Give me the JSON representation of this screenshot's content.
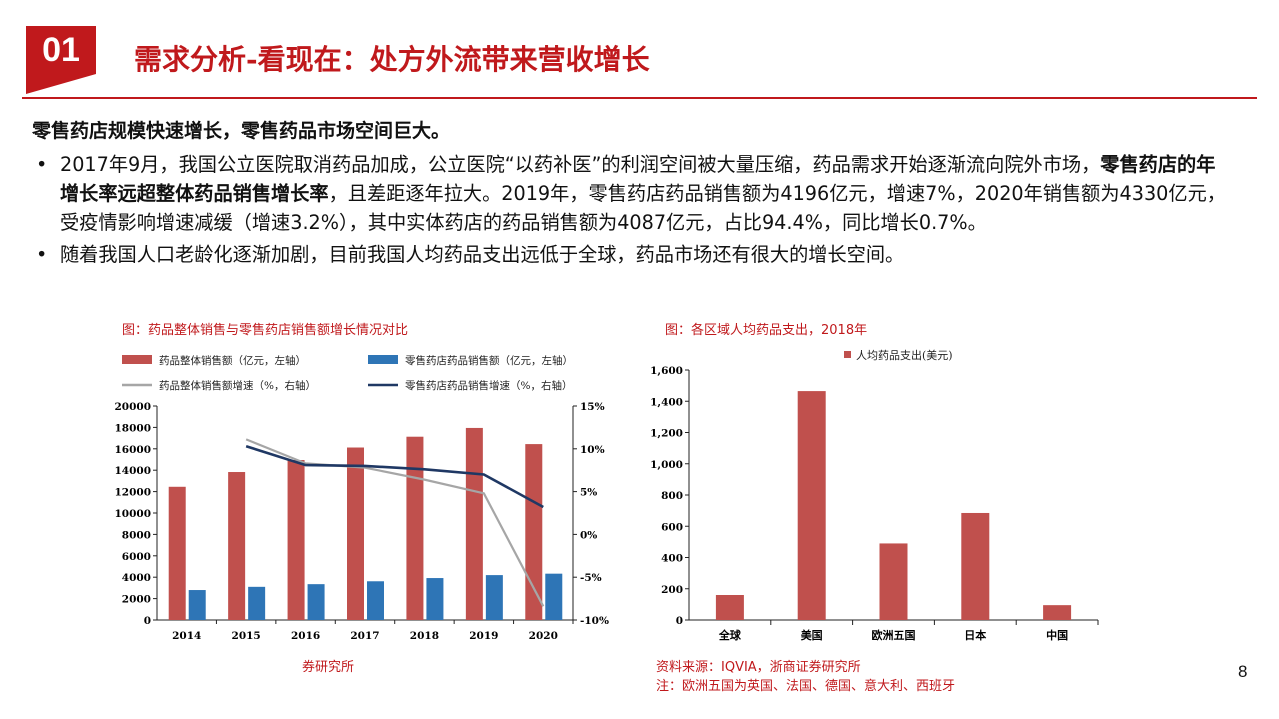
{
  "header": {
    "badge": "01",
    "title": "需求分析-看现在：处方外流带来营收增长"
  },
  "lead": "零售药店规模快速增长，零售药品市场空间巨大。",
  "bullets": {
    "b1_part1": "2017年9月，我国公立医院取消药品加成，公立医院“以药补医”的利润空间被大量压缩，药品需求开始逐渐流向院外市场，",
    "b1_bold": "零售药店的年增长率远超整体药品销售增长率",
    "b1_part2": "，且差距逐年拉大。2019年，零售药店药品销售额为4196亿元，增速7%，2020年销售额为4330亿元，受疫情影响增速减缓（增速3.2%），其中实体药店的药品销售额为4087亿元，占比94.4%，同比增长0.7%。",
    "b2": "随着我国人口老龄化逐渐加剧，目前我国人均药品支出远低于全球，药品市场还有很大的增长空间。"
  },
  "left_figure": {
    "caption": "图：药品整体销售与零售药店销售额增长情况对比",
    "source": "券研究所"
  },
  "right_figure": {
    "caption": "图：各区域人均药品支出，2018年",
    "source_line1": "资料来源：IQVIA，浙商证券研究所",
    "source_line2": "注：欧洲五国为英国、法国、德国、意大利、西班牙"
  },
  "page_number": "8",
  "colors": {
    "accent": "#c0191c",
    "bar_red": "#c0504d",
    "bar_blue": "#2e75b6",
    "line_gray": "#a6a6a6",
    "line_navy": "#1f3864"
  },
  "chart_data": [
    {
      "type": "bar",
      "categories": [
        "2014",
        "2015",
        "2016",
        "2017",
        "2018",
        "2019",
        "2020"
      ],
      "series": [
        {
          "name": "药品整体销售额（亿元，左轴）",
          "kind": "bar",
          "axis": "left",
          "color": "#c0504d",
          "values": [
            12450,
            13830,
            14950,
            16120,
            17130,
            17950,
            16440
          ]
        },
        {
          "name": "零售药店药品销售额（亿元，左轴）",
          "kind": "bar",
          "axis": "left",
          "color": "#2e75b6",
          "values": [
            2800,
            3100,
            3350,
            3620,
            3920,
            4196,
            4330
          ]
        },
        {
          "name": "药品整体销售额增速（%，右轴）",
          "kind": "line",
          "axis": "right",
          "color": "#a6a6a6",
          "values": [
            null,
            11.1,
            8.3,
            7.8,
            6.4,
            4.8,
            -8.4
          ]
        },
        {
          "name": "零售药店药品销售增速（%，右轴）",
          "kind": "line",
          "axis": "right",
          "color": "#1f3864",
          "values": [
            null,
            10.3,
            8.1,
            8.0,
            7.6,
            7.0,
            3.2
          ]
        }
      ],
      "ylim_left": [
        0,
        20000
      ],
      "yticks_left": [
        "0",
        "2000",
        "4000",
        "6000",
        "8000",
        "10000",
        "12000",
        "14000",
        "16000",
        "18000",
        "20000"
      ],
      "ylim_right": [
        -10,
        15
      ],
      "yticks_right": [
        "-10%",
        "-5%",
        "0%",
        "5%",
        "10%",
        "15%"
      ],
      "legend": "top"
    },
    {
      "type": "bar",
      "categories": [
        "全球",
        "美国",
        "欧洲五国",
        "日本",
        "中国"
      ],
      "series": [
        {
          "name": "人均药品支出(美元)",
          "color": "#c0504d",
          "values": [
            160,
            1465,
            490,
            685,
            95
          ]
        }
      ],
      "ylim": [
        0,
        1600
      ],
      "yticks": [
        "0",
        "200",
        "400",
        "600",
        "800",
        "1,000",
        "1,200",
        "1,400",
        "1,600"
      ],
      "legend": "top"
    }
  ]
}
